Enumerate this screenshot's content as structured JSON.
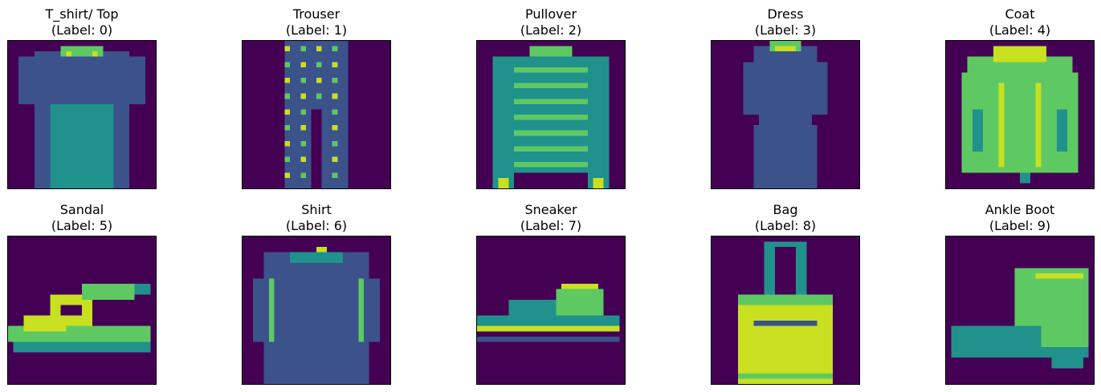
{
  "figure": {
    "panels": [
      {
        "name": "T_shirt/ Top",
        "label_text": "(Label: 0)",
        "shape": "tshirt"
      },
      {
        "name": "Trouser",
        "label_text": "(Label: 1)",
        "shape": "trouser"
      },
      {
        "name": "Pullover",
        "label_text": "(Label: 2)",
        "shape": "pullover"
      },
      {
        "name": "Dress",
        "label_text": "(Label: 3)",
        "shape": "dress"
      },
      {
        "name": "Coat",
        "label_text": "(Label: 4)",
        "shape": "coat"
      },
      {
        "name": "Sandal",
        "label_text": "(Label: 5)",
        "shape": "sandal"
      },
      {
        "name": "Shirt",
        "label_text": "(Label: 6)",
        "shape": "shirt"
      },
      {
        "name": "Sneaker",
        "label_text": "(Label: 7)",
        "shape": "sneaker"
      },
      {
        "name": "Bag",
        "label_text": "(Label: 8)",
        "shape": "bag"
      },
      {
        "name": "Ankle Boot",
        "label_text": "(Label: 9)",
        "shape": "boot"
      }
    ],
    "colormap": {
      "background": "#440154",
      "dark_blue": "#3b528b",
      "teal": "#21918c",
      "green": "#5ec962",
      "yellow": "#c8e020"
    }
  }
}
